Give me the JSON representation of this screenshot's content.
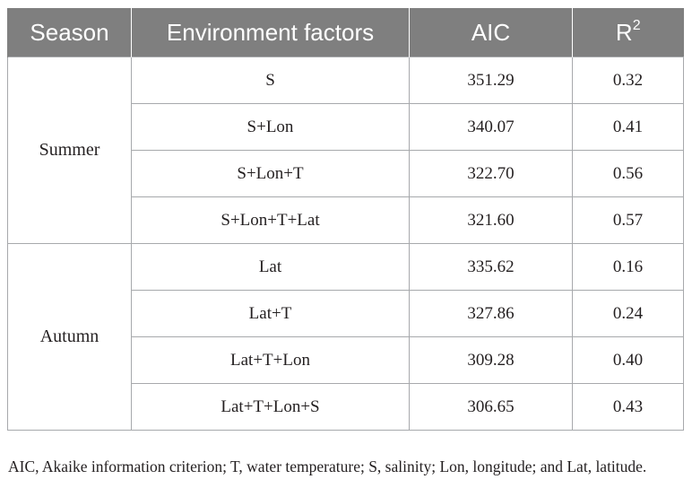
{
  "table": {
    "headers": {
      "season": "Season",
      "factors": "Environment factors",
      "aic": "AIC",
      "r2_base": "R",
      "r2_sup": "2"
    },
    "groups": [
      {
        "season": "Summer",
        "rows": [
          {
            "factors": "S",
            "aic": "351.29",
            "r2": "0.32"
          },
          {
            "factors": "S+Lon",
            "aic": "340.07",
            "r2": "0.41"
          },
          {
            "factors": "S+Lon+T",
            "aic": "322.70",
            "r2": "0.56"
          },
          {
            "factors": "S+Lon+T+Lat",
            "aic": "321.60",
            "r2": "0.57"
          }
        ]
      },
      {
        "season": "Autumn",
        "rows": [
          {
            "factors": "Lat",
            "aic": "335.62",
            "r2": "0.16"
          },
          {
            "factors": "Lat+T",
            "aic": "327.86",
            "r2": "0.24"
          },
          {
            "factors": "Lat+T+Lon",
            "aic": "309.28",
            "r2": "0.40"
          },
          {
            "factors": "Lat+T+Lon+S",
            "aic": "306.65",
            "r2": "0.43"
          }
        ]
      }
    ]
  },
  "footnote": "AIC, Akaike information criterion; T, water temperature; S, salinity; Lon, longitude; and Lat, latitude.",
  "colors": {
    "header_bg": "#7f7f7f",
    "header_text": "#ffffff",
    "grid": "#a7a9ac",
    "body_text": "#231f20"
  }
}
